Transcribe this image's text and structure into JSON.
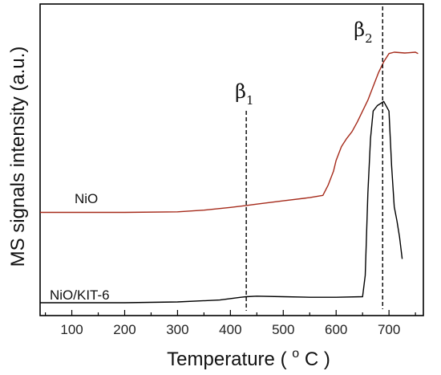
{
  "chart_data": {
    "type": "line",
    "title": "",
    "xlabel": "Temperature",
    "xlabel_unit_prefix": "o",
    "xlabel_unit_suffix": "C",
    "ylabel": "MS signals intensity (a.u.)",
    "xlim": [
      40,
      765
    ],
    "x_ticks": [
      100,
      200,
      300,
      400,
      500,
      600,
      700
    ],
    "ylim": [
      0,
      1
    ],
    "y_ticks_shown": false,
    "grid": false,
    "legend": "none",
    "series": [
      {
        "name": "NiO",
        "color": "#a52a1a",
        "points": [
          [
            40,
            0.33
          ],
          [
            100,
            0.33
          ],
          [
            200,
            0.33
          ],
          [
            300,
            0.332
          ],
          [
            350,
            0.338
          ],
          [
            400,
            0.348
          ],
          [
            430,
            0.355
          ],
          [
            450,
            0.36
          ],
          [
            500,
            0.372
          ],
          [
            550,
            0.384
          ],
          [
            575,
            0.392
          ],
          [
            585,
            0.43
          ],
          [
            595,
            0.48
          ],
          [
            600,
            0.52
          ],
          [
            610,
            0.57
          ],
          [
            620,
            0.6
          ],
          [
            630,
            0.625
          ],
          [
            640,
            0.66
          ],
          [
            650,
            0.7
          ],
          [
            660,
            0.74
          ],
          [
            670,
            0.79
          ],
          [
            680,
            0.84
          ],
          [
            690,
            0.88
          ],
          [
            700,
            0.91
          ],
          [
            710,
            0.915
          ],
          [
            730,
            0.912
          ],
          [
            750,
            0.915
          ],
          [
            755,
            0.91
          ]
        ]
      },
      {
        "name": "NiO/KIT-6",
        "color": "#000000",
        "points": [
          [
            40,
            0.0
          ],
          [
            100,
            0.0
          ],
          [
            200,
            0.0
          ],
          [
            300,
            0.003
          ],
          [
            380,
            0.01
          ],
          [
            420,
            0.02
          ],
          [
            430,
            0.022
          ],
          [
            450,
            0.024
          ],
          [
            500,
            0.022
          ],
          [
            550,
            0.02
          ],
          [
            600,
            0.02
          ],
          [
            650,
            0.022
          ],
          [
            655,
            0.1
          ],
          [
            660,
            0.4
          ],
          [
            665,
            0.6
          ],
          [
            670,
            0.7
          ],
          [
            678,
            0.72
          ],
          [
            690,
            0.735
          ],
          [
            700,
            0.7
          ],
          [
            705,
            0.5
          ],
          [
            710,
            0.35
          ],
          [
            715,
            0.3
          ],
          [
            720,
            0.24
          ],
          [
            725,
            0.16
          ]
        ]
      }
    ],
    "annotations": [
      {
        "symbol": "β",
        "subscript": "1",
        "x": 430
      },
      {
        "symbol": "β",
        "subscript": "2",
        "x": 688
      }
    ]
  }
}
